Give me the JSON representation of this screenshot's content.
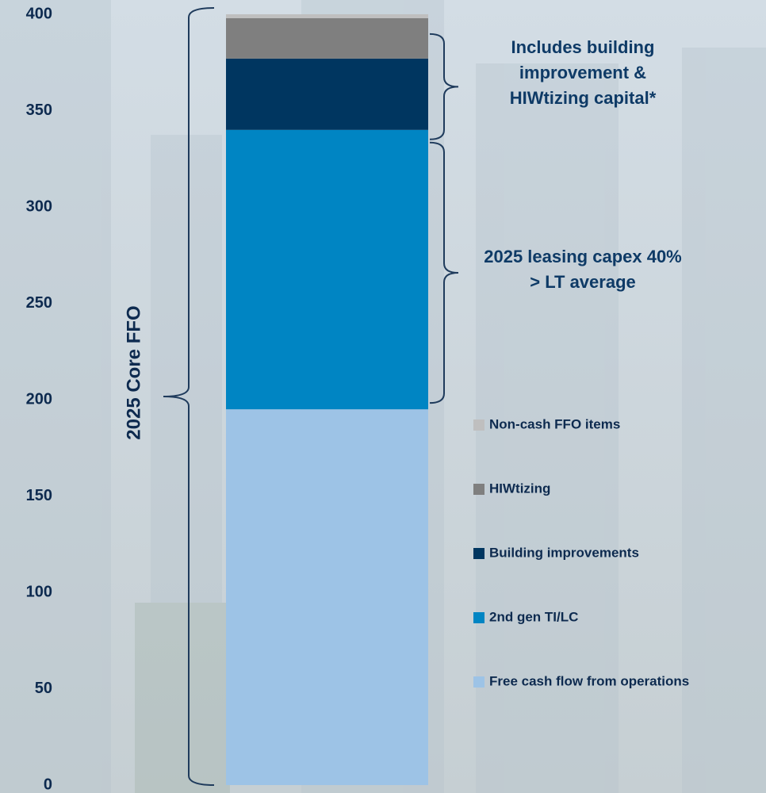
{
  "chart_data": {
    "type": "bar",
    "stacked": true,
    "categories": [
      null
    ],
    "series": [
      {
        "name": "Free cash flow from operations",
        "color": "#9dc3e6",
        "values": [
          195
        ]
      },
      {
        "name": "2nd gen TI/LC",
        "color": "#0085c3",
        "values": [
          145
        ]
      },
      {
        "name": "Building improvements",
        "color": "#003660",
        "values": [
          37
        ]
      },
      {
        "name": "HIWtizing",
        "color": "#7f7f7f",
        "values": [
          21
        ]
      },
      {
        "name": "Non-cash FFO items",
        "color": "#bfbfbf",
        "values": [
          2
        ]
      }
    ],
    "ylim": [
      0,
      400
    ],
    "yticks": [
      0,
      50,
      100,
      150,
      200,
      250,
      300,
      350,
      400
    ],
    "grid": false,
    "bracket_label": "2025 Core FFO",
    "annotations": [
      {
        "text": "Includes building improvement & HIWtizing capital*"
      },
      {
        "text": "2025 leasing capex 40% > LT average"
      }
    ]
  }
}
